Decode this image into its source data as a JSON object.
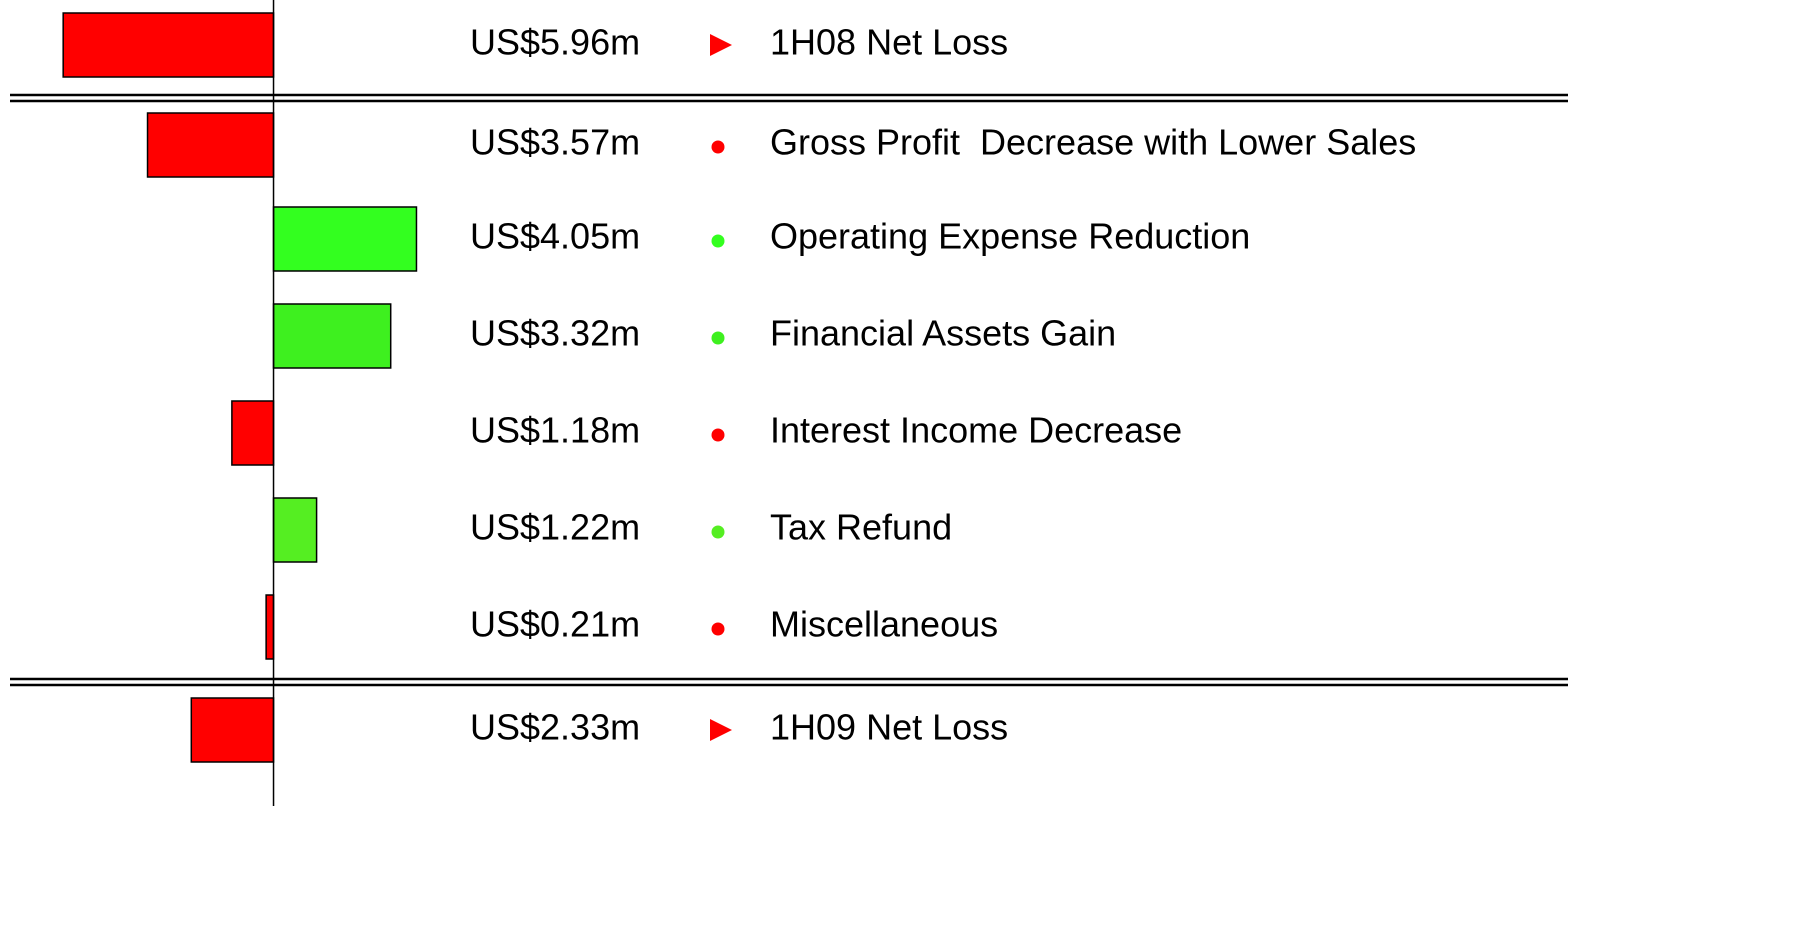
{
  "chart_data": {
    "type": "hbar",
    "categories": [
      "1H08 Net Loss",
      "Gross Profit  Decrease with Lower Sales",
      "Operating Expense Reduction",
      "Financial Assets Gain",
      "Interest Income Decrease",
      "Tax Refund",
      "Miscellaneous",
      "1H09 Net Loss"
    ],
    "values": [
      -5.96,
      -3.57,
      4.05,
      3.32,
      -1.18,
      1.22,
      -0.21,
      -2.33
    ],
    "value_labels": [
      "US$5.96m",
      "US$3.57m",
      "US$4.05m",
      "US$3.32m",
      "US$1.18m",
      "US$1.22m",
      "US$0.21m",
      "US$2.33m"
    ],
    "colors": [
      "#ff0000",
      "#ff0000",
      "#33ff1f",
      "#3ef01f",
      "#ff0000",
      "#55ee22",
      "#ff0000",
      "#ff0000"
    ],
    "xlim": [
      -7.75,
      5
    ]
  }
}
